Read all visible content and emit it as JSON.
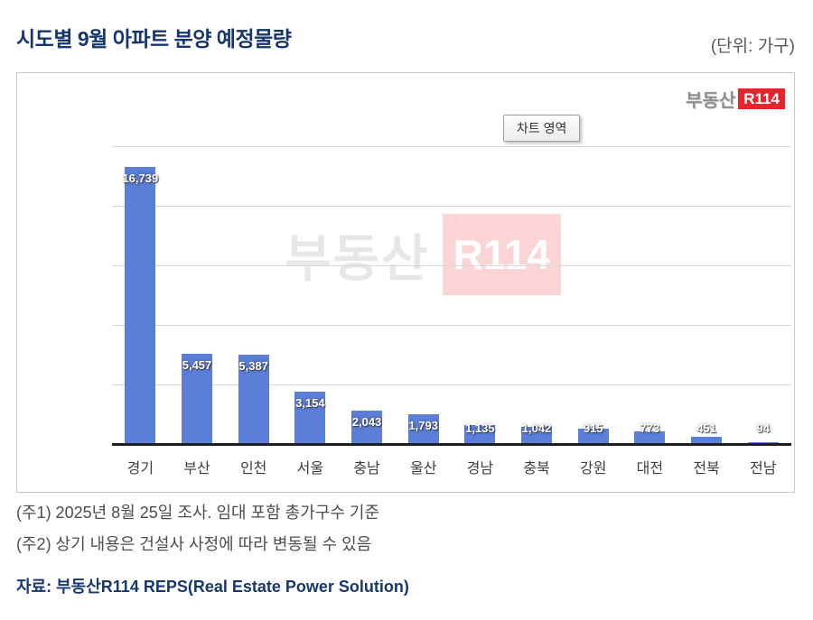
{
  "header": {
    "title": "시도별 9월 아파트 분양 예정물량",
    "unit_label": "(단위: 가구)"
  },
  "chart": {
    "logo_prefix": "부동산",
    "logo_brand": "R114",
    "tooltip_label": "차트 영역",
    "watermark_prefix": "부동산",
    "watermark_brand": "R114"
  },
  "chart_data": {
    "type": "bar",
    "title": "시도별 9월 아파트 분양 예정물량",
    "unit": "가구",
    "categories": [
      "경기",
      "부산",
      "인천",
      "서울",
      "충남",
      "울산",
      "경남",
      "충북",
      "강원",
      "대전",
      "전북",
      "전남"
    ],
    "values": [
      16739,
      5457,
      5387,
      3154,
      2043,
      1793,
      1135,
      1042,
      915,
      773,
      451,
      94
    ],
    "xlabel": "",
    "ylabel": "",
    "ylim": [
      0,
      18000
    ],
    "grid": true,
    "gridline_count": 5,
    "legend": "none",
    "bar_color": "#5b7ed7",
    "value_label_color": "#ffffff"
  },
  "footnotes": {
    "note1": "(주1) 2025년 8월 25일 조사. 임대 포함 총가구수 기준",
    "note2": "(주2) 상기 내용은 건설사 사정에 따라 변동될 수 있음",
    "source": "자료: 부동산R114 REPS(Real Estate Power Solution)"
  }
}
